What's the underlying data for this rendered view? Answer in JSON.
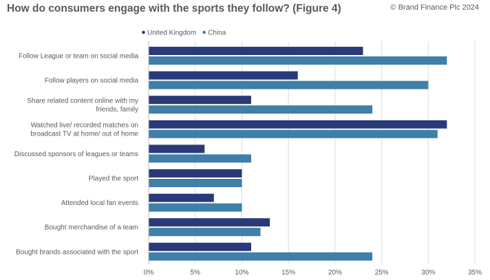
{
  "header": {
    "title": "How do consumers engage with the sports they follow? (Figure 4)",
    "copyright": "© Brand Finance Plc 2024"
  },
  "colors": {
    "series_uk": "#2a3a78",
    "series_china": "#3f7fa8",
    "grid": "#dcdcdc",
    "text": "#555a5f"
  },
  "chart_data": {
    "type": "bar",
    "orientation": "horizontal",
    "title": "How do consumers engage with the sports they follow? (Figure 4)",
    "categories": [
      [
        "Follow League or team on social media"
      ],
      [
        "Follow players on social media"
      ],
      [
        "Share related content online with my",
        "friends, family"
      ],
      [
        "Watched live/ recorded matches on",
        "broadcast TV at home/ out of home"
      ],
      [
        "Discussed sponsors of leagues or teams"
      ],
      [
        "Played the sport"
      ],
      [
        "Attended local fan events"
      ],
      [
        "Bought merchandise of a team"
      ],
      [
        "Bought brands associated with the sport"
      ]
    ],
    "series": [
      {
        "name": "United Kingdom",
        "values": [
          23,
          16,
          11,
          32,
          6,
          10,
          7,
          13,
          11
        ]
      },
      {
        "name": "China",
        "values": [
          32,
          30,
          24,
          31,
          11,
          10,
          10,
          12,
          24
        ]
      }
    ],
    "xlim": [
      0,
      35
    ],
    "xticks": [
      "0%",
      "5%",
      "10%",
      "15%",
      "20%",
      "25%",
      "30%",
      "35%"
    ],
    "grid": true,
    "legend": "top-left"
  }
}
